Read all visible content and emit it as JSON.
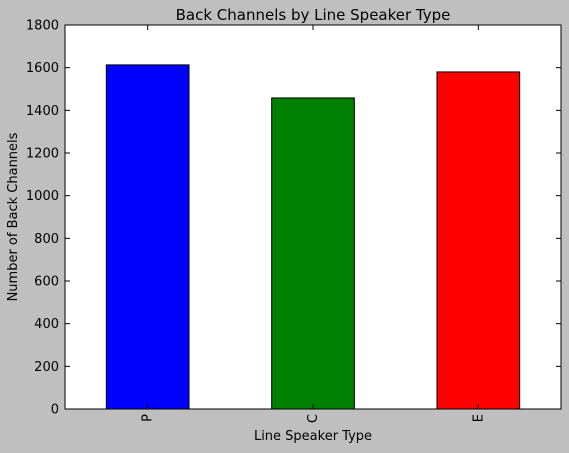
{
  "chart_data": {
    "type": "bar",
    "title": "Back Channels by Line Speaker Type",
    "xlabel": "Line Speaker Type",
    "ylabel": "Number of Back Channels",
    "categories": [
      "P",
      "C",
      "E"
    ],
    "values": [
      1613,
      1458,
      1580
    ],
    "colors": [
      "#0000ff",
      "#008000",
      "#ff0000"
    ],
    "ylim": [
      0,
      1800
    ],
    "yticks": [
      0,
      200,
      400,
      600,
      800,
      1000,
      1200,
      1400,
      1600,
      1800
    ],
    "grid": false,
    "legend": "none"
  }
}
